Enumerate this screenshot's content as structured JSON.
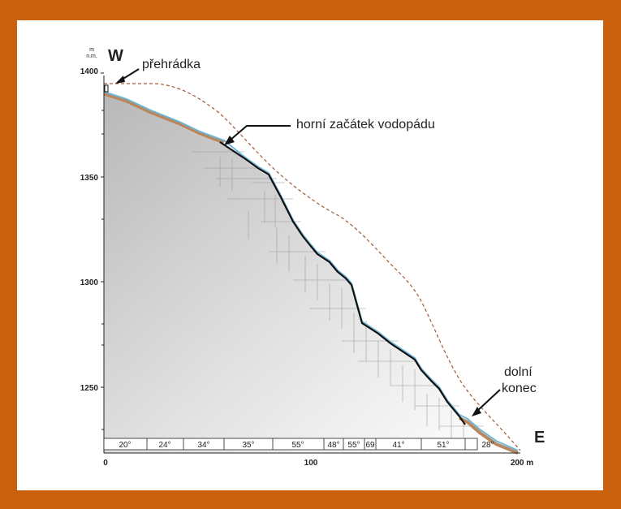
{
  "diagram": {
    "y_axis": {
      "unit_top": "m",
      "unit_bottom": "n.m.",
      "ticks": [
        "1400",
        "1350",
        "1300",
        "1250"
      ]
    },
    "x_axis": {
      "ticks": [
        "0",
        "100",
        "200 m"
      ]
    },
    "directions": {
      "west": "W",
      "east": "E"
    },
    "annotations": {
      "barrier": "přehrádka",
      "waterfall_top": "horní začátek vodopádu",
      "lower_end_line1": "dolní",
      "lower_end_line2": "konec"
    },
    "segments": [
      "20°",
      "24°",
      "34°",
      "35°",
      "55°",
      "48°",
      "55°",
      "69",
      "41°",
      "51°",
      "28°"
    ],
    "colors": {
      "frame": "#c8600d",
      "profile_line": "#111111",
      "water_line": "#6fb6d8",
      "surface_dashed": "#a05a3a",
      "slope_fill": "#bbbbbb"
    }
  }
}
